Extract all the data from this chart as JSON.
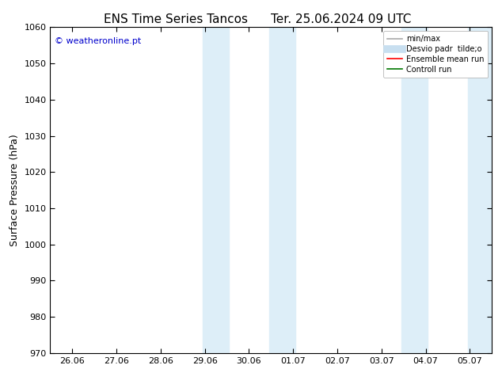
{
  "title_left": "ENS Time Series Tancos",
  "title_right": "Ter. 25.06.2024 09 UTC",
  "ylabel": "Surface Pressure (hPa)",
  "ylim": [
    970,
    1060
  ],
  "yticks": [
    970,
    980,
    990,
    1000,
    1010,
    1020,
    1030,
    1040,
    1050,
    1060
  ],
  "x_tick_labels": [
    "26.06",
    "27.06",
    "28.06",
    "29.06",
    "30.06",
    "01.07",
    "02.07",
    "03.07",
    "04.07",
    "05.07"
  ],
  "x_tick_positions": [
    0,
    1,
    2,
    3,
    4,
    5,
    6,
    7,
    8,
    9
  ],
  "xlim": [
    -0.5,
    9.5
  ],
  "shaded_bands": [
    {
      "x_start": 2.95,
      "x_end": 3.55,
      "color": "#ddeef8"
    },
    {
      "x_start": 4.45,
      "x_end": 5.05,
      "color": "#ddeef8"
    },
    {
      "x_start": 7.45,
      "x_end": 8.05,
      "color": "#ddeef8"
    },
    {
      "x_start": 8.95,
      "x_end": 9.5,
      "color": "#ddeef8"
    }
  ],
  "watermark_text": "© weatheronline.pt",
  "watermark_color": "#0000cc",
  "legend_entries": [
    {
      "label": "min/max",
      "color": "#aaaaaa",
      "lw": 1.2
    },
    {
      "label": "Desvio padr  tilde;o",
      "color": "#c8dff0",
      "lw": 7
    },
    {
      "label": "Ensemble mean run",
      "color": "#ff0000",
      "lw": 1.2
    },
    {
      "label": "Controll run",
      "color": "#007700",
      "lw": 1.2
    }
  ],
  "bg_color": "#ffffff",
  "spine_color": "#000000",
  "tick_color": "#000000",
  "title_fontsize": 11,
  "label_fontsize": 9,
  "tick_fontsize": 8,
  "watermark_fontsize": 8
}
